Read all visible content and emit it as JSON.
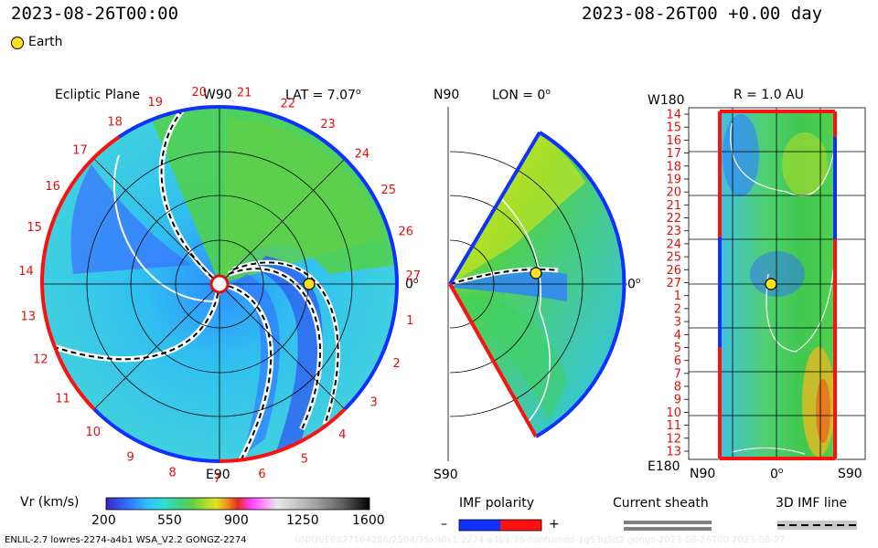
{
  "header": {
    "date_left": "2023-08-26T00:00",
    "date_right": "2023-08-26T00 +0.00 day",
    "earth_label": "Earth"
  },
  "panel_ecliptic": {
    "title": "Ecliptic Plane",
    "lat_label": "LAT = 7.07",
    "lat_deg": "o",
    "top_label": "W90",
    "bottom_label": "E90",
    "right_label": "0",
    "right_deg": "o",
    "carrington_labels": [
      "20",
      "21",
      "22",
      "23",
      "24",
      "25",
      "26",
      "27",
      "1",
      "2",
      "3",
      "4",
      "5",
      "6",
      "7",
      "8",
      "9",
      "10",
      "11",
      "12",
      "13",
      "14",
      "15",
      "16",
      "17",
      "18",
      "19"
    ]
  },
  "panel_meridional": {
    "title": "LON = 0",
    "title_deg": "o",
    "top_label": "N90",
    "bottom_label": "S90",
    "right_label": "0",
    "right_deg": "o"
  },
  "panel_shell": {
    "title": "R = 1.0 AU",
    "top_left": "W180",
    "bottom_left": "E180",
    "x_labels": [
      "N90",
      "0",
      "S90"
    ],
    "x_label_deg": "o",
    "y_labels": [
      "14",
      "15",
      "16",
      "17",
      "18",
      "19",
      "20",
      "21",
      "22",
      "23",
      "24",
      "25",
      "26",
      "27",
      "1",
      "2",
      "3",
      "4",
      "5",
      "6",
      "7",
      "8",
      "9",
      "10",
      "11",
      "12",
      "13"
    ]
  },
  "colorbar": {
    "label": "Vr (km/s)",
    "ticks": [
      "200",
      "550",
      "900",
      "1250",
      "1600"
    ],
    "colors": [
      "#4020c0",
      "#3070ff",
      "#30c0ff",
      "#30e0d0",
      "#40d080",
      "#60d040",
      "#b0e030",
      "#e0e020",
      "#f09020",
      "#e03020",
      "#ff40ff",
      "#ff90ff",
      "#d0d0d0",
      "#a0a0a0",
      "#606060",
      "#000000"
    ]
  },
  "legend": {
    "imf_title": "IMF polarity",
    "imf_minus": "–",
    "imf_plus": "+",
    "sheath_title": "Current sheath",
    "imf_line_title": "3D IMF line"
  },
  "footer": {
    "left": "ENLIL-2.7 lowres-2274-a4b1 WSA_V2.2 GONGZ-2274",
    "right": "UNIQUE6827164286/2584/35x90x1.2274-a4b1.16-nsoturned-1g53q5d2.gongz-2023-08-26T00 2023-08-27"
  },
  "chart_data": {
    "type": "heatmap",
    "title": "",
    "variable": "Vr (km/s)",
    "color_range": [
      200,
      1600
    ],
    "earth": {
      "radius_au": 1.0,
      "longitude_deg": 0,
      "latitude_deg": 7.07
    },
    "ecliptic_carrington_ticks": [
      "20",
      "21",
      "22",
      "23",
      "24",
      "25",
      "26",
      "27",
      "1",
      "2",
      "3",
      "4",
      "5",
      "6",
      "7",
      "8",
      "9",
      "10",
      "11",
      "12",
      "13",
      "14",
      "15",
      "16",
      "17",
      "18",
      "19"
    ],
    "imf_polarity": [
      "-",
      "+"
    ]
  }
}
